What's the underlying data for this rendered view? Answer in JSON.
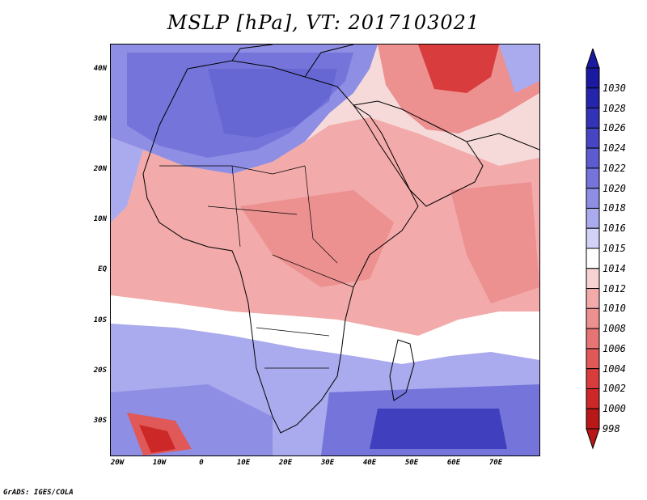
{
  "title": "MSLP [hPa], VT: 2017103021",
  "footer": "GrADS: IGES/COLA",
  "axes": {
    "y_ticks": [
      "40N",
      "30N",
      "20N",
      "10N",
      "EQ",
      "10S",
      "20S",
      "30S"
    ],
    "x_ticks": [
      "20W",
      "10W",
      "0",
      "10E",
      "20E",
      "30E",
      "40E",
      "50E",
      "60E",
      "70E"
    ]
  },
  "map": {
    "field": "Mean sea level pressure",
    "units": "hPa",
    "valid_time": "2017103021",
    "region": "Africa and Middle East",
    "lon_range": [
      -22,
      80
    ],
    "lat_range": [
      -37,
      45
    ]
  },
  "colorbar": {
    "labels": [
      "1030",
      "1028",
      "1026",
      "1024",
      "1022",
      "1020",
      "1018",
      "1016",
      "1015",
      "1014",
      "1012",
      "1010",
      "1008",
      "1006",
      "1004",
      "1002",
      "1000",
      "998"
    ],
    "colors": {
      "c1030": "#1a1aa0",
      "c1028": "#2424ac",
      "c1026": "#3333b8",
      "c1024": "#4646c4",
      "c1022": "#5c5cd0",
      "c1020": "#7474da",
      "c1018": "#8e8ee4",
      "c1016": "#aaaaee",
      "c1015": "#d2d2f8",
      "c1014": "#ffffff",
      "c1012": "#f8d2d2",
      "c1010": "#f2aaaa",
      "c1008": "#ec9090",
      "c1006": "#e67474",
      "c1004": "#e05858",
      "c1002": "#d83c3c",
      "c1000": "#cc2828",
      "c998": "#b81818"
    }
  }
}
